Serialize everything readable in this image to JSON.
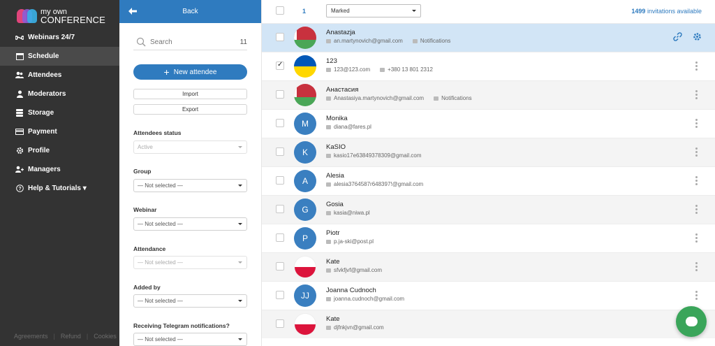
{
  "brand": {
    "line1": "my own",
    "line2": "CONFERENCE"
  },
  "sidebar": {
    "items": [
      {
        "label": "Webinars 24/7",
        "icon": "infinity-icon"
      },
      {
        "label": "Schedule",
        "icon": "calendar-icon",
        "active": true
      },
      {
        "label": "Attendees",
        "icon": "users-icon"
      },
      {
        "label": "Moderators",
        "icon": "moderator-icon"
      },
      {
        "label": "Storage",
        "icon": "database-icon"
      },
      {
        "label": "Payment",
        "icon": "credit-card-icon"
      },
      {
        "label": "Profile",
        "icon": "gear-icon"
      },
      {
        "label": "Managers",
        "icon": "managers-icon"
      },
      {
        "label": "Help & Tutorials ▾",
        "icon": "help-icon"
      }
    ],
    "footer": [
      "Agreements",
      "Refund",
      "Cookies"
    ]
  },
  "filters": {
    "back_label": "Back",
    "search_placeholder": "Search",
    "search_count": "11",
    "new_attendee_label": "New attendee",
    "import_label": "Import",
    "export_label": "Export",
    "status_label": "Attendees status",
    "status_value": "Active",
    "group_label": "Group",
    "group_value": "— Not selected —",
    "webinar_label": "Webinar",
    "webinar_value": "— Not selected —",
    "attendance_label": "Attendance",
    "attendance_value": "— Not selected —",
    "added_by_label": "Added by",
    "added_by_value": "— Not selected —",
    "telegram_label": "Receiving Telegram notifications?",
    "telegram_value": "— Not selected —"
  },
  "main": {
    "marked_count": "1",
    "marked_select": "Marked",
    "invitations_count": "1499",
    "invitations_label": "invitations available",
    "attendees": [
      {
        "name": "Anastazja",
        "email": "an.martynovich@gmail.com",
        "extra": "Notifications",
        "avatar": "flag-by",
        "checked": false,
        "selected": true
      },
      {
        "name": "123",
        "email": "123@123.com",
        "extra": "+380 13 801 2312",
        "avatar": "flag-ua",
        "checked": true
      },
      {
        "name": "Анастасия",
        "email": "Anastasiya.martynovich@gmail.com",
        "extra": "Notifications",
        "avatar": "flag-by",
        "checked": false
      },
      {
        "name": "Monika",
        "email": "diana@fares.pl",
        "avatar": "M",
        "checked": false
      },
      {
        "name": "KaSIO",
        "email": "kasio17e63849378309@gmail.com",
        "avatar": "K",
        "checked": false
      },
      {
        "name": "Alesia",
        "email": "alesia3764587r648397!@gmail.com",
        "avatar": "A",
        "checked": false
      },
      {
        "name": "Gosia",
        "email": "kasia@niwa.pl",
        "avatar": "G",
        "checked": false
      },
      {
        "name": "Piotr",
        "email": "p.ja-ski@post.pl",
        "avatar": "P",
        "checked": false
      },
      {
        "name": "Kate",
        "email": "sfvkfjvf@gmail.com",
        "avatar": "flag-pl",
        "checked": false
      },
      {
        "name": "Joanna Cudnoch",
        "email": "joanna.cudnoch@gmail.com",
        "avatar": "JJ",
        "checked": false
      },
      {
        "name": "Kate",
        "email": "djfnkjvn@gmail.com",
        "avatar": "flag-pl",
        "checked": false
      }
    ]
  },
  "colors": {
    "accent": "#2f7bbf",
    "sidebar": "#333333",
    "selected_row": "#d2e5f6",
    "chat": "#3aa55a"
  }
}
